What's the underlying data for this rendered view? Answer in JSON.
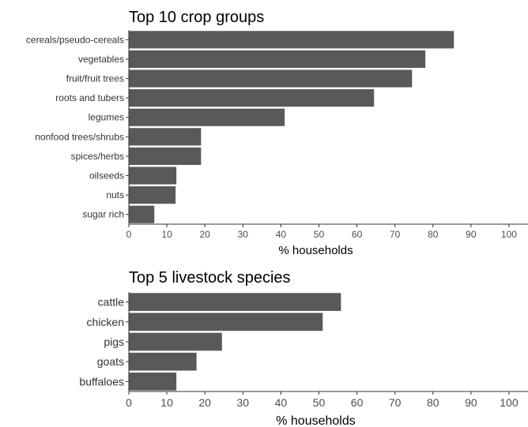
{
  "chart_data": [
    {
      "type": "bar",
      "orientation": "horizontal",
      "title": "Top 10 crop groups",
      "xlabel": "% households",
      "ylabel": "",
      "xlim": [
        0,
        105
      ],
      "xticks": [
        0,
        10,
        20,
        30,
        40,
        50,
        60,
        70,
        80,
        90,
        100
      ],
      "categories": [
        "cereals/pseudo-cereals",
        "vegetables",
        "fruit/fruit trees",
        "roots and tubers",
        "legumes",
        "nonfood trees/shrubs",
        "spices/herbs",
        "oilseeds",
        "nuts",
        "sugar rich"
      ],
      "values": [
        85.5,
        78,
        74.5,
        64.5,
        41,
        19,
        19,
        12.5,
        12.3,
        6.7
      ],
      "bar_color": "#595959",
      "grid": false,
      "legend": "none"
    },
    {
      "type": "bar",
      "orientation": "horizontal",
      "title": "Top 5 livestock species",
      "xlabel": "% households",
      "ylabel": "",
      "xlim": [
        0,
        105
      ],
      "xticks": [
        0,
        10,
        20,
        30,
        40,
        50,
        60,
        70,
        80,
        90,
        100
      ],
      "categories": [
        "cattle",
        "chicken",
        "pigs",
        "goats",
        "buffaloes"
      ],
      "values": [
        55.8,
        51,
        24.5,
        17.8,
        12.5
      ],
      "bar_color": "#595959",
      "grid": false,
      "legend": "none"
    }
  ]
}
